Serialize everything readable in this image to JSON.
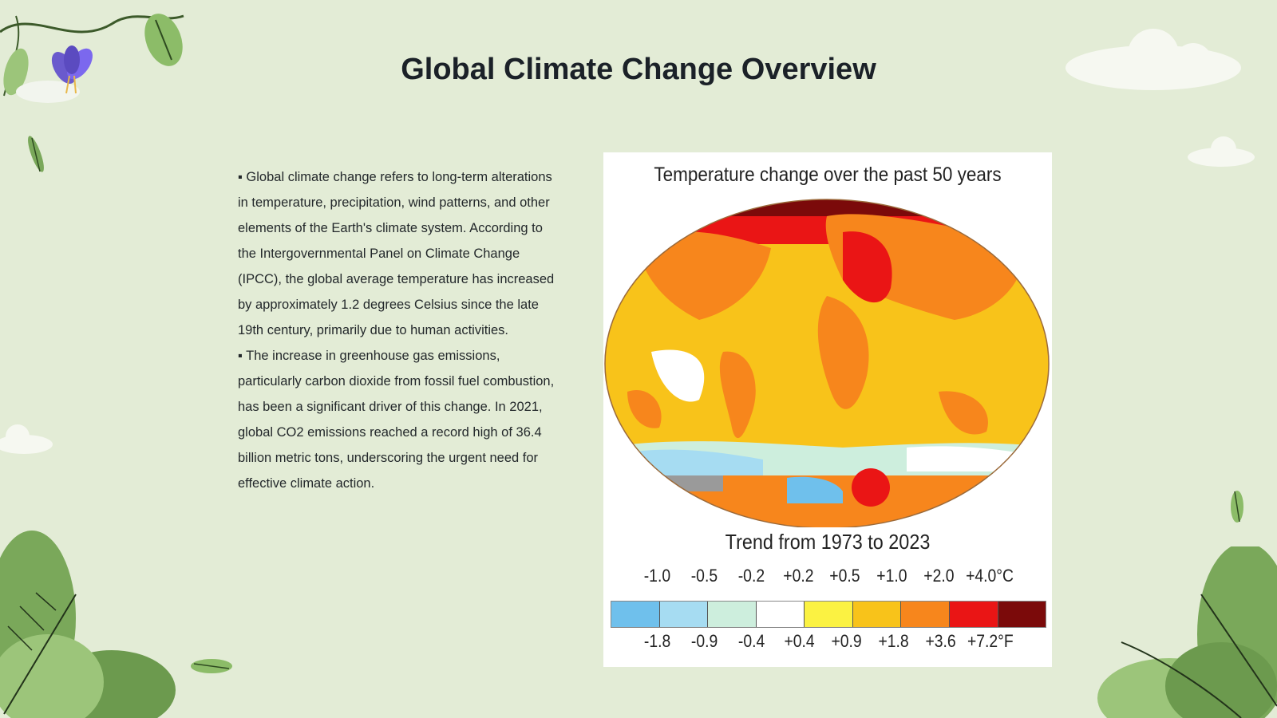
{
  "slide": {
    "title": "Global Climate Change Overview",
    "paragraphs": [
      "▪ Global climate change refers to long-term alterations in temperature, precipitation, wind patterns, and other elements of the Earth's climate system. According to the Intergovernmental Panel on Climate Change (IPCC), the global average temperature has increased by approximately 1.2 degrees Celsius since the late 19th century, primarily due to human activities.",
      "▪ The increase in greenhouse gas emissions, particularly carbon dioxide from fossil fuel combustion, has been a significant driver of this change. In 2021, global CO2 emissions reached a record high of 36.4 billion metric tons, underscoring the urgent need for effective climate action."
    ]
  },
  "figure": {
    "title": "Temperature change over the past 50 years",
    "trend_label": "Trend from 1973 to 2023",
    "scale_celsius": [
      "-1.0",
      "-0.5",
      "-0.2",
      "+0.2",
      "+0.5",
      "+1.0",
      "+2.0",
      "+4.0°C"
    ],
    "scale_fahrenheit": [
      "-1.8",
      "-0.9",
      "-0.4",
      "+0.4",
      "+0.9",
      "+1.8",
      "+3.6",
      "+7.2°F"
    ],
    "colorbar_colors": [
      "#6fc0ec",
      "#a6dcf2",
      "#cdeedd",
      "#ffffff",
      "#fbf242",
      "#f8c31a",
      "#f7861c",
      "#ea1515",
      "#7b0a0a"
    ]
  },
  "decor": {
    "icons": [
      "vine-icon",
      "flower-icon",
      "leaf-icon",
      "cloud-icon",
      "bush-icon"
    ],
    "colors": {
      "background": "#e3ecd6",
      "leaf": "#8cbc68",
      "flower": "#6a5acd"
    }
  }
}
